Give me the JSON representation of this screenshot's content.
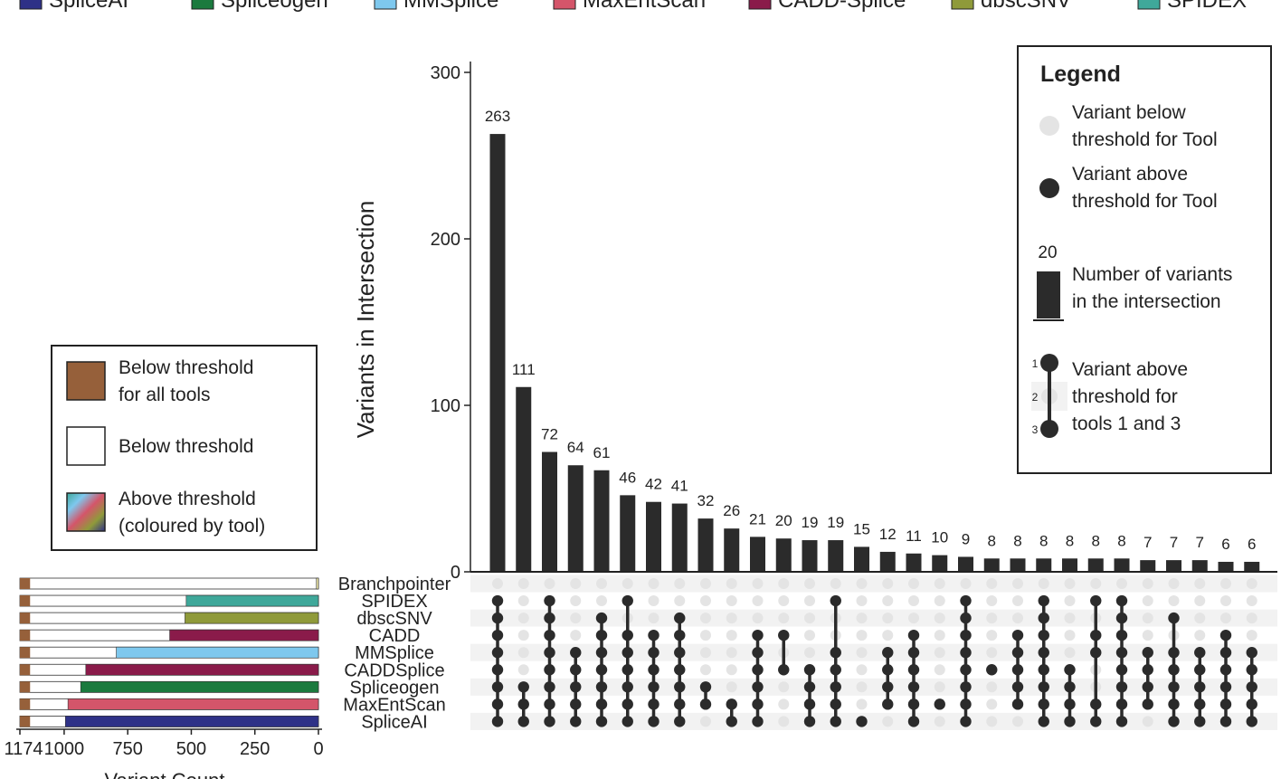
{
  "chart_data": {
    "type": "upset",
    "tool_legend": [
      {
        "name": "SpliceAI",
        "color": "#2e3187"
      },
      {
        "name": "Spliceogen",
        "color": "#1b7a3e"
      },
      {
        "name": "MMSplice",
        "color": "#7ec8ee"
      },
      {
        "name": "MaxEntScan",
        "color": "#d4556a"
      },
      {
        "name": "CADD-Splice",
        "color": "#8a1b4a"
      },
      {
        "name": "dbscSNV",
        "color": "#8f9a3a"
      },
      {
        "name": "SPIDEX",
        "color": "#3fa89a"
      }
    ],
    "intersection_axis": {
      "label": "Variants in Intersection",
      "ylim": [
        0,
        300
      ],
      "ticks": [
        0,
        100,
        200,
        300
      ]
    },
    "intersection_values": [
      263,
      111,
      72,
      64,
      61,
      46,
      42,
      41,
      32,
      26,
      21,
      20,
      19,
      19,
      15,
      12,
      11,
      10,
      9,
      8,
      8,
      8,
      8,
      8,
      8,
      7,
      7,
      7,
      6,
      6
    ],
    "sets": [
      "Branchpointer",
      "SPIDEX",
      "dbscSNV",
      "CADD",
      "MMSplice",
      "CADDSplice",
      "Spliceogen",
      "MaxEntScan",
      "SpliceAI"
    ],
    "matrix": [
      [
        0,
        0,
        0,
        0,
        0,
        0,
        0,
        0,
        0,
        0,
        0,
        0,
        0,
        0,
        0,
        0,
        0,
        0,
        0,
        0,
        0,
        0,
        0,
        0,
        0,
        0,
        0,
        0,
        0,
        0
      ],
      [
        1,
        0,
        1,
        0,
        0,
        1,
        0,
        0,
        0,
        0,
        0,
        0,
        0,
        1,
        0,
        0,
        0,
        0,
        1,
        0,
        0,
        1,
        0,
        1,
        1,
        0,
        0,
        0,
        0,
        0
      ],
      [
        1,
        0,
        1,
        0,
        1,
        0,
        0,
        1,
        0,
        0,
        0,
        0,
        0,
        0,
        0,
        0,
        0,
        0,
        1,
        0,
        0,
        1,
        0,
        0,
        1,
        0,
        1,
        0,
        0,
        0
      ],
      [
        1,
        0,
        1,
        0,
        1,
        1,
        1,
        1,
        0,
        0,
        1,
        1,
        0,
        0,
        0,
        0,
        1,
        0,
        1,
        0,
        1,
        1,
        0,
        1,
        1,
        0,
        0,
        0,
        1,
        0
      ],
      [
        1,
        0,
        1,
        1,
        1,
        1,
        1,
        1,
        0,
        0,
        1,
        0,
        0,
        1,
        0,
        1,
        1,
        0,
        1,
        0,
        1,
        1,
        0,
        1,
        1,
        1,
        1,
        1,
        1,
        1
      ],
      [
        1,
        0,
        1,
        1,
        1,
        1,
        1,
        1,
        0,
        0,
        1,
        1,
        1,
        1,
        0,
        1,
        1,
        0,
        1,
        1,
        1,
        1,
        1,
        0,
        1,
        1,
        1,
        1,
        1,
        1
      ],
      [
        1,
        1,
        1,
        1,
        1,
        1,
        1,
        1,
        1,
        0,
        1,
        0,
        1,
        1,
        0,
        1,
        1,
        0,
        1,
        0,
        1,
        1,
        1,
        0,
        1,
        1,
        1,
        1,
        1,
        1
      ],
      [
        1,
        1,
        1,
        1,
        1,
        1,
        1,
        1,
        1,
        1,
        1,
        0,
        1,
        1,
        0,
        1,
        1,
        1,
        1,
        0,
        1,
        1,
        1,
        1,
        1,
        1,
        1,
        1,
        1,
        1
      ],
      [
        1,
        1,
        1,
        1,
        1,
        1,
        1,
        1,
        0,
        1,
        1,
        0,
        1,
        1,
        1,
        0,
        1,
        0,
        1,
        0,
        0,
        1,
        1,
        1,
        1,
        0,
        1,
        1,
        1,
        1
      ]
    ],
    "set_size_axis": {
      "label": "Variant Count",
      "xlim": [
        1174,
        0
      ],
      "ticks": [
        1174,
        1000,
        750,
        500,
        250,
        0
      ]
    },
    "set_sizes": [
      {
        "set": "Branchpointer",
        "total": 1174,
        "below_all": 40,
        "above": 8,
        "color": "#e9e3a6"
      },
      {
        "set": "SPIDEX",
        "total": 1174,
        "below_all": 40,
        "above": 520,
        "color": "#3fa89a"
      },
      {
        "set": "dbscSNV",
        "total": 1174,
        "below_all": 40,
        "above": 525,
        "color": "#8f9a3a"
      },
      {
        "set": "CADD",
        "total": 1174,
        "below_all": 40,
        "above": 585,
        "color": "#8a1b4a"
      },
      {
        "set": "MMSplice",
        "total": 1174,
        "below_all": 40,
        "above": 795,
        "color": "#7ec8ee"
      },
      {
        "set": "CADDSplice",
        "total": 1174,
        "below_all": 40,
        "above": 915,
        "color": "#8a1b4a"
      },
      {
        "set": "Spliceogen",
        "total": 1174,
        "below_all": 40,
        "above": 935,
        "color": "#1b7a3e"
      },
      {
        "set": "MaxEntScan",
        "total": 1174,
        "below_all": 40,
        "above": 985,
        "color": "#d4556a"
      },
      {
        "set": "SpliceAI",
        "total": 1174,
        "below_all": 40,
        "above": 995,
        "color": "#2e3187"
      }
    ],
    "bar_legend": [
      {
        "line1": "Below threshold",
        "line2": "for all tools",
        "swatch": "brown"
      },
      {
        "line1": "Below threshold",
        "line2": "",
        "swatch": "white"
      },
      {
        "line1": "Above threshold",
        "line2": "(coloured by tool)",
        "swatch": "rainbow"
      }
    ],
    "main_legend": {
      "title": "Legend",
      "below_dot": [
        "Variant below",
        "threshold for Tool"
      ],
      "above_dot": [
        "Variant above",
        "threshold for Tool"
      ],
      "bar_example_value": "20",
      "bar_text": [
        "Number of variants",
        "in the intersection"
      ],
      "link_labels": [
        "1",
        "2",
        "3"
      ],
      "link_text": [
        "Variant above",
        "threshold for",
        "tools 1 and 3"
      ]
    },
    "colors": {
      "bar": "#2b2b2b",
      "dot_on": "#2b2b2b",
      "dot_off": "#e4e4e4",
      "stripe": "#f2f2f2",
      "below_all": "#96603a"
    }
  }
}
